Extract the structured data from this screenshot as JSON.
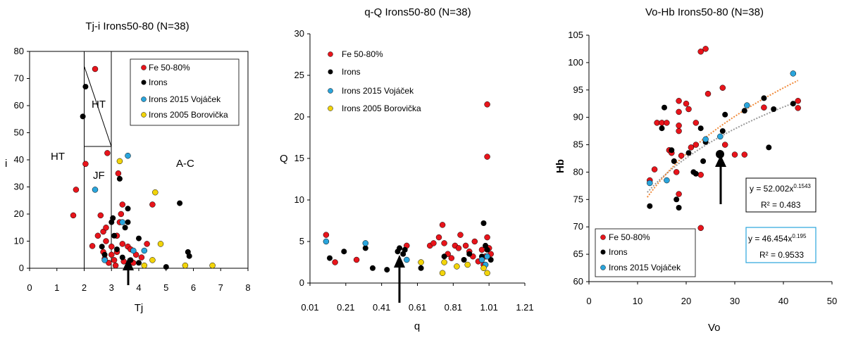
{
  "colors": {
    "Fe": "#e8141b",
    "Irons": "#000000",
    "Vojacek": "#2aa5dc",
    "Borovicka": "#f2d40a"
  },
  "chart_data": [
    {
      "type": "scatter",
      "title": "Tj-i  Irons50-80 (N=38)",
      "xlabel": "Tj",
      "ylabel": "i",
      "xlim": [
        0,
        8
      ],
      "ylim": [
        0,
        80
      ],
      "xticks": [
        "0",
        "1",
        "2",
        "3",
        "4",
        "5",
        "6",
        "7",
        "8"
      ],
      "yticks": [
        "0",
        "10",
        "20",
        "30",
        "40",
        "50",
        "60",
        "70",
        "80"
      ],
      "regions": [
        "HT",
        "HT",
        "JF",
        "A-C"
      ],
      "legend": [
        "Fe 50-80%",
        "Irons",
        "Irons 2015 Vojáček",
        "Irons 2005 Borovička"
      ],
      "series": [
        {
          "name": "Fe 50-80%",
          "key": "Fe",
          "points": [
            [
              1.6,
              19.5
            ],
            [
              1.7,
              29
            ],
            [
              2.05,
              38.5
            ],
            [
              2.4,
              73.5
            ],
            [
              2.3,
              8.2
            ],
            [
              2.5,
              12
            ],
            [
              2.6,
              19.5
            ],
            [
              2.7,
              13.5
            ],
            [
              2.7,
              6
            ],
            [
              2.75,
              3.5
            ],
            [
              2.8,
              10
            ],
            [
              2.8,
              15
            ],
            [
              2.85,
              42.5
            ],
            [
              2.9,
              2
            ],
            [
              3.0,
              5
            ],
            [
              3.0,
              8
            ],
            [
              3.1,
              3
            ],
            [
              3.15,
              1
            ],
            [
              3.2,
              6
            ],
            [
              3.2,
              12
            ],
            [
              3.25,
              35
            ],
            [
              3.3,
              17
            ],
            [
              3.35,
              20
            ],
            [
              3.4,
              23.5
            ],
            [
              3.4,
              9
            ],
            [
              3.45,
              2.5
            ],
            [
              3.6,
              8
            ],
            [
              3.7,
              7
            ],
            [
              3.8,
              2
            ],
            [
              3.9,
              5
            ],
            [
              4.1,
              4
            ],
            [
              4.3,
              9
            ],
            [
              4.5,
              23.5
            ]
          ]
        },
        {
          "name": "Irons",
          "key": "Irons",
          "points": [
            [
              1.95,
              56
            ],
            [
              2.05,
              67
            ],
            [
              2.65,
              8
            ],
            [
              2.75,
              5
            ],
            [
              3.0,
              17
            ],
            [
              3.05,
              18.5
            ],
            [
              3.1,
              12
            ],
            [
              3.2,
              7
            ],
            [
              3.3,
              33
            ],
            [
              3.4,
              4
            ],
            [
              3.5,
              15
            ],
            [
              3.6,
              22
            ],
            [
              3.6,
              17
            ],
            [
              3.7,
              3
            ],
            [
              4.0,
              11
            ],
            [
              4.0,
              2
            ],
            [
              5.0,
              0.5
            ],
            [
              5.5,
              24
            ],
            [
              5.8,
              6
            ],
            [
              5.85,
              4.5
            ]
          ]
        },
        {
          "name": "Irons 2015 Vojáček",
          "key": "Vojacek",
          "points": [
            [
              2.4,
              29
            ],
            [
              2.75,
              3
            ],
            [
              3.4,
              17
            ],
            [
              3.6,
              41.5
            ],
            [
              3.8,
              6.5
            ],
            [
              4.2,
              6.5
            ]
          ]
        },
        {
          "name": "Irons 2005 Borovička",
          "key": "Borovicka",
          "points": [
            [
              3.3,
              39.5
            ],
            [
              4.2,
              1
            ],
            [
              4.5,
              3
            ],
            [
              4.6,
              28
            ],
            [
              4.8,
              9
            ],
            [
              5.7,
              1
            ],
            [
              6.7,
              1
            ]
          ]
        }
      ]
    },
    {
      "type": "scatter",
      "title": "q-Q  Irons50-80 (N=38)",
      "xlabel": "q",
      "ylabel": "Q",
      "xlim": [
        0.01,
        1.21
      ],
      "ylim": [
        0,
        30
      ],
      "xticks": [
        "0.01",
        "0.21",
        "0.41",
        "0.61",
        "0.81",
        "1.01",
        "1.21"
      ],
      "yticks": [
        "0",
        "5",
        "10",
        "15",
        "20",
        "25",
        "30"
      ],
      "legend": [
        "Fe 50-80%",
        "Irons",
        "Irons 2015 Vojáček",
        "Irons 2005 Borovička"
      ],
      "series": [
        {
          "name": "Fe 50-80%",
          "key": "Fe",
          "points": [
            [
              0.1,
              5.8
            ],
            [
              0.15,
              2.5
            ],
            [
              0.27,
              2.8
            ],
            [
              0.55,
              4.5
            ],
            [
              0.68,
              4.5
            ],
            [
              0.7,
              4.8
            ],
            [
              0.73,
              5.5
            ],
            [
              0.75,
              7
            ],
            [
              0.76,
              4.8
            ],
            [
              0.78,
              3.5
            ],
            [
              0.8,
              3
            ],
            [
              0.82,
              4.5
            ],
            [
              0.84,
              4.2
            ],
            [
              0.85,
              5.8
            ],
            [
              0.88,
              4.5
            ],
            [
              0.9,
              3.8
            ],
            [
              0.92,
              3.2
            ],
            [
              0.95,
              2.6
            ],
            [
              0.97,
              4
            ],
            [
              0.98,
              2.2
            ],
            [
              0.99,
              3.2
            ],
            [
              1.0,
              21.5
            ],
            [
              1.0,
              15.2
            ],
            [
              1.0,
              5.5
            ],
            [
              1.01,
              4.2
            ],
            [
              1.02,
              3.5
            ],
            [
              0.93,
              5
            ]
          ]
        },
        {
          "name": "Irons",
          "key": "Irons",
          "points": [
            [
              0.12,
              3
            ],
            [
              0.2,
              3.8
            ],
            [
              0.32,
              4.2
            ],
            [
              0.36,
              1.8
            ],
            [
              0.44,
              1.6
            ],
            [
              0.5,
              3.8
            ],
            [
              0.51,
              4.2
            ],
            [
              0.53,
              3.5
            ],
            [
              0.54,
              4
            ],
            [
              0.63,
              1.8
            ],
            [
              0.76,
              3.2
            ],
            [
              0.87,
              2.8
            ],
            [
              0.9,
              3.5
            ],
            [
              0.97,
              3.2
            ],
            [
              0.98,
              7.2
            ],
            [
              0.99,
              4.5
            ],
            [
              1.0,
              4
            ],
            [
              1.02,
              2.8
            ]
          ]
        },
        {
          "name": "Irons 2015 Vojáček",
          "key": "Vojacek",
          "points": [
            [
              0.1,
              5
            ],
            [
              0.32,
              4.8
            ],
            [
              0.55,
              2.8
            ],
            [
              0.97,
              2.8
            ],
            [
              0.99,
              2.2
            ],
            [
              1.0,
              3.2
            ]
          ]
        },
        {
          "name": "Irons 2005 Borovička",
          "key": "Borovicka",
          "points": [
            [
              0.63,
              2.5
            ],
            [
              0.75,
              1.2
            ],
            [
              0.76,
              2.5
            ],
            [
              0.83,
              2
            ],
            [
              0.89,
              2.2
            ],
            [
              0.98,
              1.8
            ],
            [
              1.0,
              1.2
            ]
          ]
        }
      ]
    },
    {
      "type": "scatter",
      "title": "Vo-Hb  Irons50-80 (N=38)",
      "xlabel": "Vo",
      "ylabel": "Hb",
      "xlim": [
        0,
        50
      ],
      "ylim": [
        60,
        105
      ],
      "xticks": [
        "0",
        "10",
        "20",
        "30",
        "40",
        "50"
      ],
      "yticks": [
        "60",
        "65",
        "70",
        "75",
        "80",
        "85",
        "90",
        "95",
        "100",
        "105"
      ],
      "legend": [
        "Fe 50-80%",
        "Irons",
        "Irons 2015 Vojáček"
      ],
      "fit_equations": [
        {
          "eq": "y = 52.002x",
          "exp": "0.1543",
          "r2": "R² = 0.483",
          "a": 52.002,
          "b": 0.1543,
          "key": "Irons"
        },
        {
          "eq": "y = 46.454x",
          "exp": "0.195",
          "r2": "R² = 0.9533",
          "a": 46.454,
          "b": 0.195,
          "key": "Fe"
        }
      ],
      "series": [
        {
          "name": "Fe 50-80%",
          "key": "Fe",
          "points": [
            [
              12.5,
              78.5
            ],
            [
              13.5,
              80.5
            ],
            [
              14,
              89
            ],
            [
              15,
              89
            ],
            [
              16,
              89
            ],
            [
              16.5,
              84
            ],
            [
              17,
              83.5
            ],
            [
              18,
              80
            ],
            [
              18.5,
              87.5
            ],
            [
              18.5,
              88.5
            ],
            [
              18.5,
              91
            ],
            [
              18.5,
              93
            ],
            [
              18.5,
              76
            ],
            [
              19,
              83
            ],
            [
              20,
              92.5
            ],
            [
              20.5,
              91.5
            ],
            [
              21,
              84.5
            ],
            [
              22,
              85
            ],
            [
              22,
              89
            ],
            [
              23,
              79.5
            ],
            [
              23,
              102
            ],
            [
              23,
              69.8
            ],
            [
              24,
              102.5
            ],
            [
              24.5,
              94.3
            ],
            [
              27.5,
              95.4
            ],
            [
              28,
              85
            ],
            [
              32,
              83.2
            ],
            [
              36,
              91.8
            ],
            [
              43,
              93
            ],
            [
              43,
              91.7
            ],
            [
              30,
              83.2
            ]
          ]
        },
        {
          "name": "Irons",
          "key": "Irons",
          "points": [
            [
              12.5,
              73.8
            ],
            [
              15,
              88
            ],
            [
              15.5,
              91.8
            ],
            [
              17,
              84
            ],
            [
              17.5,
              82
            ],
            [
              18,
              75
            ],
            [
              18.5,
              73.5
            ],
            [
              20.5,
              83.5
            ],
            [
              21.5,
              80
            ],
            [
              22,
              79.7
            ],
            [
              23,
              88
            ],
            [
              23.5,
              82
            ],
            [
              24,
              85.5
            ],
            [
              27.5,
              87.5
            ],
            [
              28,
              90.5
            ],
            [
              32,
              91.2
            ],
            [
              36,
              93.5
            ],
            [
              37,
              84.5
            ],
            [
              38,
              91.5
            ],
            [
              42,
              92.5
            ]
          ]
        },
        {
          "name": "Irons 2015 Vojáček",
          "key": "Vojacek",
          "points": [
            [
              12.5,
              78
            ],
            [
              16,
              78.5
            ],
            [
              24,
              86
            ],
            [
              27,
              86.5
            ],
            [
              32.5,
              92.2
            ],
            [
              42,
              98
            ]
          ]
        }
      ]
    }
  ]
}
